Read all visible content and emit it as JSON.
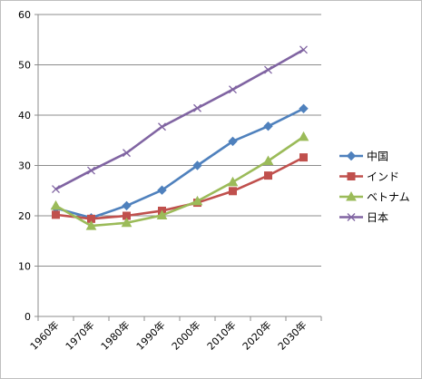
{
  "chart_data": {
    "type": "line",
    "categories": [
      "1960年",
      "1970年",
      "1980年",
      "1990年",
      "2000年",
      "2010年",
      "2020年",
      "2030年"
    ],
    "ylim": [
      0,
      60
    ],
    "yticks": [
      0,
      10,
      20,
      30,
      40,
      50,
      60
    ],
    "grid": "horizontal major gridlines",
    "legend": "right",
    "series": [
      {
        "name": "中国",
        "values": [
          21.5,
          19.6,
          22.0,
          25.1,
          30.0,
          34.8,
          37.8,
          41.3
        ],
        "color": "#4f81bd",
        "marker": "diamond"
      },
      {
        "name": "インド",
        "values": [
          20.2,
          19.4,
          20.0,
          21.0,
          22.6,
          24.9,
          28.0,
          31.6
        ],
        "color": "#c0504d",
        "marker": "square"
      },
      {
        "name": "ベトナム",
        "values": [
          22.0,
          18.0,
          18.6,
          20.1,
          22.9,
          26.7,
          30.9,
          35.7
        ],
        "color": "#9bbb59",
        "marker": "triangle"
      },
      {
        "name": "日本",
        "values": [
          25.3,
          29.0,
          32.5,
          37.7,
          41.4,
          45.1,
          49.0,
          53.0
        ],
        "color": "#8064a2",
        "marker": "x"
      }
    ]
  }
}
